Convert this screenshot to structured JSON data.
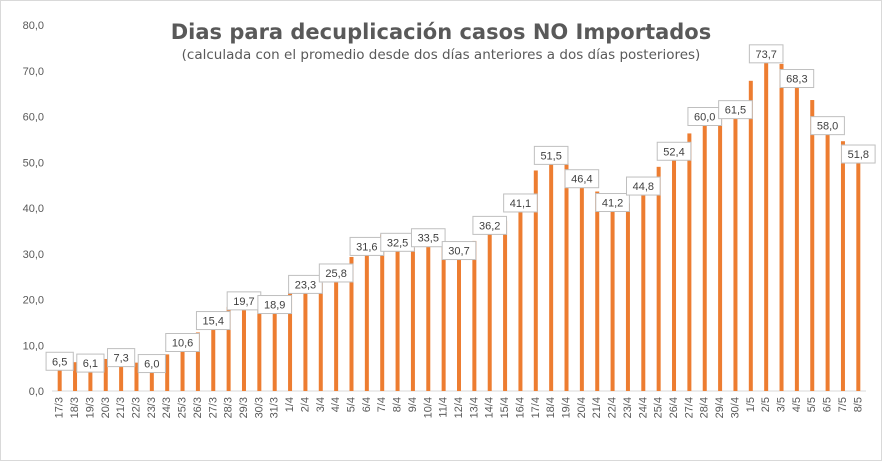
{
  "chart_data": {
    "type": "bar",
    "title": "Dias para decuplicación casos NO Importados",
    "subtitle": "(calculada con el promedio  desde dos días anteriores a dos días posteriores)",
    "xlabel": "",
    "ylabel": "",
    "ylim": [
      0,
      80
    ],
    "yticks": [
      "0,0",
      "10,0",
      "20,0",
      "30,0",
      "40,0",
      "50,0",
      "60,0",
      "70,0",
      "80,0"
    ],
    "grid": false,
    "legend": "none",
    "bar_color": "#ED7D31",
    "categories": [
      "17/3",
      "18/3",
      "19/3",
      "20/3",
      "21/3",
      "22/3",
      "23/3",
      "24/3",
      "25/3",
      "26/3",
      "27/3",
      "28/3",
      "29/3",
      "30/3",
      "31/3",
      "1/4",
      "2/4",
      "3/4",
      "4/4",
      "5/4",
      "6/4",
      "7/4",
      "8/4",
      "9/4",
      "10/4",
      "11/4",
      "12/4",
      "13/4",
      "14/4",
      "15/4",
      "16/4",
      "17/4",
      "18/4",
      "19/4",
      "20/4",
      "21/4",
      "22/4",
      "23/4",
      "24/4",
      "25/4",
      "26/4",
      "27/4",
      "28/4",
      "29/4",
      "30/4",
      "1/5",
      "2/5",
      "3/5",
      "4/5",
      "5/5",
      "6/5",
      "7/5",
      "8/5"
    ],
    "values": [
      6.5,
      6.3,
      6.1,
      7.0,
      7.3,
      6.2,
      6.0,
      8.0,
      10.6,
      12.8,
      15.4,
      18.4,
      19.7,
      19.2,
      18.9,
      21.5,
      23.3,
      23.6,
      25.8,
      29.3,
      31.6,
      34.2,
      32.5,
      31.3,
      33.5,
      32.6,
      30.7,
      32.8,
      36.2,
      37.2,
      41.1,
      48.2,
      51.5,
      49.8,
      46.4,
      43.6,
      41.2,
      41.0,
      44.8,
      49.0,
      52.4,
      56.3,
      60.0,
      60.3,
      61.5,
      67.8,
      73.7,
      71.5,
      68.3,
      63.6,
      58.0,
      54.6,
      51.8
    ],
    "data_labels": [
      {
        "category": "17/3",
        "text": "6,5"
      },
      {
        "category": "19/3",
        "text": "6,1"
      },
      {
        "category": "21/3",
        "text": "7,3"
      },
      {
        "category": "23/3",
        "text": "6,0"
      },
      {
        "category": "25/3",
        "text": "10,6"
      },
      {
        "category": "27/3",
        "text": "15,4"
      },
      {
        "category": "29/3",
        "text": "19,7"
      },
      {
        "category": "31/3",
        "text": "18,9"
      },
      {
        "category": "2/4",
        "text": "23,3"
      },
      {
        "category": "4/4",
        "text": "25,8"
      },
      {
        "category": "6/4",
        "text": "31,6"
      },
      {
        "category": "8/4",
        "text": "32,5"
      },
      {
        "category": "10/4",
        "text": "33,5"
      },
      {
        "category": "12/4",
        "text": "30,7"
      },
      {
        "category": "14/4",
        "text": "36,2"
      },
      {
        "category": "16/4",
        "text": "41,1"
      },
      {
        "category": "18/4",
        "text": "51,5"
      },
      {
        "category": "20/4",
        "text": "46,4"
      },
      {
        "category": "22/4",
        "text": "41,2"
      },
      {
        "category": "24/4",
        "text": "44,8"
      },
      {
        "category": "26/4",
        "text": "52,4"
      },
      {
        "category": "28/4",
        "text": "60,0"
      },
      {
        "category": "30/4",
        "text": "61,5"
      },
      {
        "category": "2/5",
        "text": "73,7"
      },
      {
        "category": "4/5",
        "text": "68,3"
      },
      {
        "category": "6/5",
        "text": "58,0"
      },
      {
        "category": "8/5",
        "text": "51,8"
      }
    ]
  }
}
